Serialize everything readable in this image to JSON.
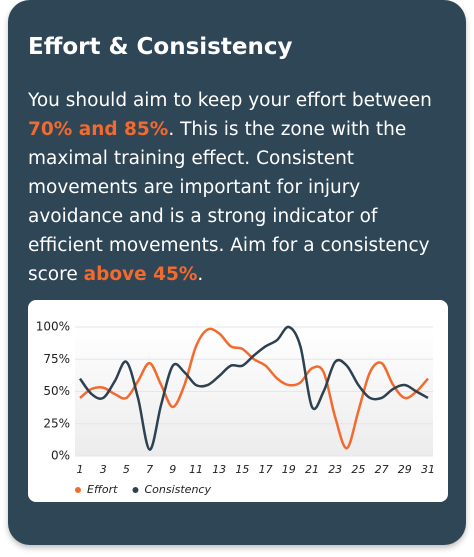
{
  "card": {
    "title": "Effort & Consistency",
    "body": [
      "You should aim to keep your effort between ",
      "70% and 85%",
      ". This is the zone with the maximal training effect. Consistent movements are important for injury avoidance and is a strong indicator of efficient movements. Aim for a consistency score ",
      "above 45%",
      "."
    ]
  },
  "chart_data": {
    "type": "line",
    "categories": [
      "1",
      null,
      "3",
      null,
      "5",
      null,
      "7",
      null,
      "9",
      null,
      "11",
      null,
      "13",
      null,
      "15",
      null,
      "17",
      null,
      "19",
      null,
      "21",
      null,
      "23",
      null,
      "25",
      null,
      "27",
      null,
      "29",
      null,
      "31"
    ],
    "series": [
      {
        "name": "Effort",
        "color": "#f26a2e",
        "values": [
          45,
          52,
          53,
          48,
          45,
          58,
          72,
          55,
          38,
          55,
          85,
          98,
          95,
          85,
          83,
          75,
          70,
          60,
          55,
          57,
          68,
          65,
          30,
          6,
          35,
          65,
          72,
          55,
          45,
          50,
          60
        ]
      },
      {
        "name": "Consistency",
        "color": "#2e4151",
        "values": [
          60,
          48,
          45,
          58,
          73,
          45,
          5,
          40,
          70,
          65,
          55,
          55,
          62,
          70,
          70,
          78,
          85,
          90,
          100,
          85,
          38,
          50,
          73,
          70,
          55,
          45,
          45,
          52,
          55,
          50,
          45
        ]
      }
    ],
    "ylim": [
      0,
      100
    ],
    "yticks": [
      {
        "value": 0,
        "label": "0%"
      },
      {
        "value": 25,
        "label": "25%"
      },
      {
        "value": 50,
        "label": "50%"
      },
      {
        "value": 75,
        "label": "75%"
      },
      {
        "value": 100,
        "label": "100%"
      }
    ],
    "grid": true,
    "legend": "bottom-left"
  }
}
